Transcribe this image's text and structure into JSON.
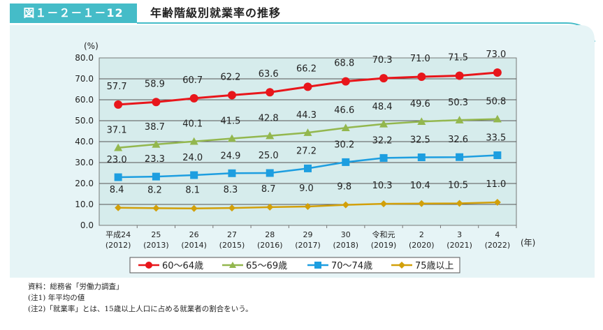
{
  "header": {
    "figure_label": "図１－２－１－12",
    "title": "年齢階級別就業率の推移"
  },
  "colors": {
    "header_teal": "#45bcc8",
    "plot_bg": "#d6ecec",
    "panel_bg": "#e6f4f6",
    "series_60_64": "#e8161b",
    "series_65_69": "#93b74e",
    "series_70_74": "#1d9ee0",
    "series_75_plus": "#d2a00a"
  },
  "notes": {
    "source": "資料：総務省「労働力調査」",
    "note1": "(注1) 年平均の値",
    "note2": "(注2)「就業率」とは、15歳以上人口に占める就業者の割合をいう。"
  },
  "chart_data": {
    "type": "line",
    "title": "",
    "ylabel": "(%)",
    "xlabel": "(年)",
    "ylim": [
      0,
      80
    ],
    "yticks": [
      "0.0",
      "10.0",
      "20.0",
      "30.0",
      "40.0",
      "50.0",
      "60.0",
      "70.0",
      "80.0"
    ],
    "grid": true,
    "legend_position": "bottom",
    "categories": [
      {
        "era": "平成24",
        "year": "(2012)"
      },
      {
        "era": "25",
        "year": "(2013)"
      },
      {
        "era": "26",
        "year": "(2014)"
      },
      {
        "era": "27",
        "year": "(2015)"
      },
      {
        "era": "28",
        "year": "(2016)"
      },
      {
        "era": "29",
        "year": "(2017)"
      },
      {
        "era": "30",
        "year": "(2018)"
      },
      {
        "era": "令和元",
        "year": "(2019)"
      },
      {
        "era": "2",
        "year": "(2020)"
      },
      {
        "era": "3",
        "year": "(2021)"
      },
      {
        "era": "4",
        "year": "(2022)"
      }
    ],
    "series": [
      {
        "name": "60～64歳",
        "color": "#e8161b",
        "marker": "circle",
        "values": [
          57.7,
          58.9,
          60.7,
          62.2,
          63.6,
          66.2,
          68.8,
          70.3,
          71.0,
          71.5,
          73.0
        ],
        "labels": [
          "57.7",
          "58.9",
          "60.7",
          "62.2",
          "63.6",
          "66.2",
          "68.8",
          "70.3",
          "71.0",
          "71.5",
          "73.0"
        ]
      },
      {
        "name": "65～69歳",
        "color": "#93b74e",
        "marker": "triangle",
        "values": [
          37.1,
          38.7,
          40.1,
          41.5,
          42.8,
          44.3,
          46.6,
          48.4,
          49.6,
          50.3,
          50.8
        ],
        "labels": [
          "37.1",
          "38.7",
          "40.1",
          "41.5",
          "42.8",
          "44.3",
          "46.6",
          "48.4",
          "49.6",
          "50.3",
          "50.8"
        ]
      },
      {
        "name": "70～74歳",
        "color": "#1d9ee0",
        "marker": "square",
        "values": [
          23.0,
          23.3,
          24.0,
          24.9,
          25.0,
          27.2,
          30.2,
          32.2,
          32.5,
          32.6,
          33.5
        ],
        "labels": [
          "23.0",
          "23.3",
          "24.0",
          "24.9",
          "25.0",
          "27.2",
          "30.2",
          "32.2",
          "32.5",
          "32.6",
          "33.5"
        ]
      },
      {
        "name": "75歳以上",
        "color": "#d2a00a",
        "marker": "diamond",
        "values": [
          8.4,
          8.2,
          8.1,
          8.3,
          8.7,
          9.0,
          9.8,
          10.3,
          10.4,
          10.5,
          11.0
        ],
        "labels": [
          "8.4",
          "8.2",
          "8.1",
          "8.3",
          "8.7",
          "9.0",
          "9.8",
          "10.3",
          "10.4",
          "10.5",
          "11.0"
        ]
      }
    ]
  }
}
